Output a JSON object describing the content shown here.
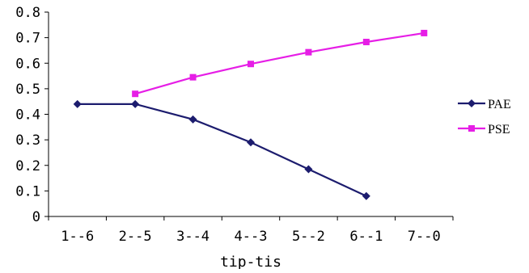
{
  "chart_data": {
    "type": "line",
    "categories": [
      "1--6",
      "2--5",
      "3--4",
      "4--3",
      "5--2",
      "6--1",
      "7--0"
    ],
    "xlabel": "tip-tis",
    "ylabel": "",
    "ylim": [
      0,
      0.8
    ],
    "yticks": [
      "0",
      "0.1",
      "0.2",
      "0.3",
      "0.4",
      "0.5",
      "0.6",
      "0.7",
      "0.8"
    ],
    "grid": false,
    "legend_position": "right",
    "series": [
      {
        "name": "PAE",
        "color": "#1c1c6e",
        "marker": "diamond",
        "values": [
          0.44,
          0.44,
          0.38,
          0.29,
          0.185,
          0.08,
          null
        ]
      },
      {
        "name": "PSE",
        "color": "#e61ee6",
        "marker": "square",
        "values": [
          null,
          0.48,
          0.545,
          0.597,
          0.643,
          0.683,
          0.718
        ]
      }
    ]
  }
}
